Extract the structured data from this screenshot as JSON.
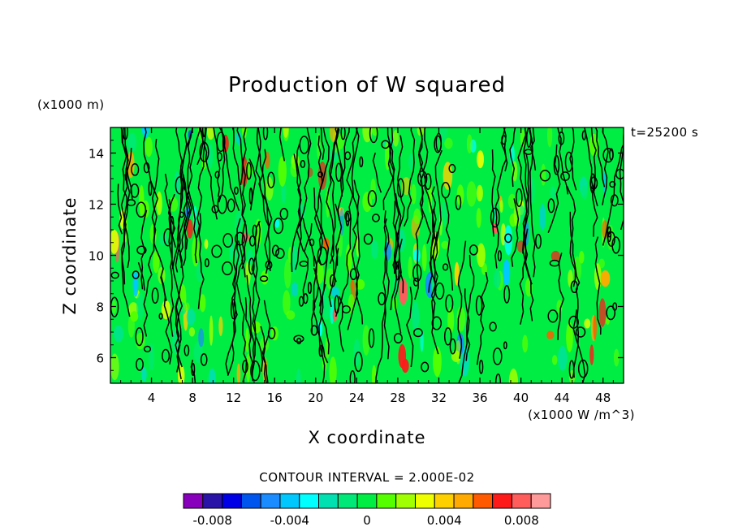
{
  "chart_data": {
    "type": "heatmap",
    "title": "Production of W squared",
    "xlabel": "X coordinate",
    "ylabel": "Z coordinate",
    "y_units_label": "(x1000 m)",
    "field_units_label": "(x1000 W /m^3)",
    "time_label": "t=25200 s",
    "contour_interval_label": "CONTOUR INTERVAL = 2.000E-02",
    "xlim": [
      0,
      50
    ],
    "ylim": [
      5,
      15
    ],
    "x_ticks": [
      4,
      8,
      12,
      16,
      20,
      24,
      28,
      32,
      36,
      40,
      44,
      48
    ],
    "x_tick_labels": [
      "4",
      "8",
      "12",
      "16",
      "20",
      "24",
      "28",
      "32",
      "36",
      "40",
      "44",
      "48"
    ],
    "y_ticks": [
      6,
      8,
      10,
      12,
      14
    ],
    "y_tick_labels": [
      "6",
      "8",
      "10",
      "12",
      "14"
    ],
    "colorbar": {
      "levels": [
        -0.009,
        -0.008,
        -0.007,
        -0.006,
        -0.005,
        -0.004,
        -0.003,
        -0.002,
        -0.001,
        0,
        0.001,
        0.002,
        0.003,
        0.004,
        0.005,
        0.006,
        0.007,
        0.008,
        0.009
      ],
      "colors": [
        "#8800bb",
        "#2a14a8",
        "#0000e6",
        "#0055ee",
        "#1a8cff",
        "#00c8ff",
        "#00ffff",
        "#00e0b0",
        "#00e878",
        "#00ee44",
        "#55ff00",
        "#a0ff00",
        "#eeff00",
        "#ffd000",
        "#ffaa00",
        "#ff5a00",
        "#ff1a1a",
        "#ff5c5c",
        "#ff9a9a"
      ],
      "tick_values": [
        -0.008,
        -0.004,
        0,
        0.004,
        0.008
      ],
      "tick_labels": [
        "-0.008",
        "-0.004",
        "0",
        "0.004",
        "0.008"
      ]
    }
  }
}
